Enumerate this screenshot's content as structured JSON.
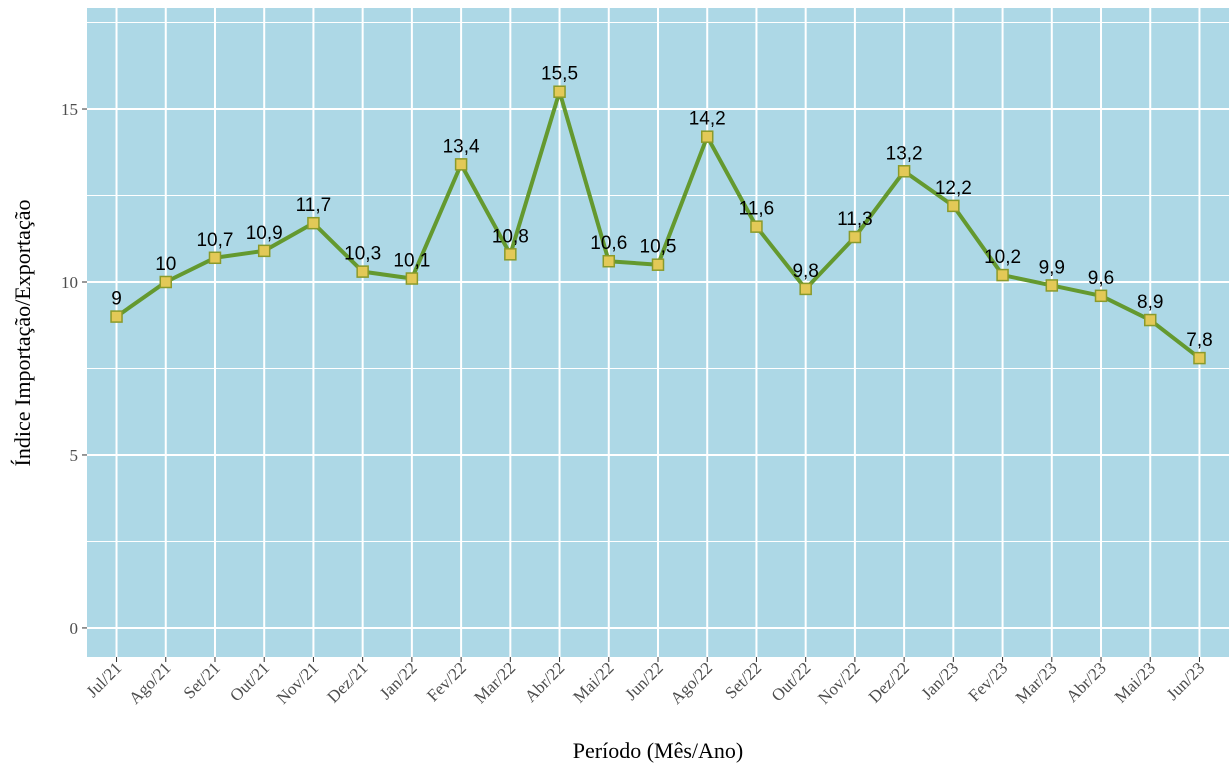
{
  "chart_data": {
    "type": "line",
    "x_label": "Período (Mês/Ano)",
    "y_label": "Índice Importação/Exportação",
    "categories": [
      "Jul/21",
      "Ago/21",
      "Set/21",
      "Out/21",
      "Nov/21",
      "Dez/21",
      "Jan/22",
      "Fev/22",
      "Mar/22",
      "Abr/22",
      "Mai/22",
      "Jun/22",
      "Ago/22",
      "Set/22",
      "Out/22",
      "Nov/22",
      "Dez/22",
      "Jan/23",
      "Fev/23",
      "Mar/23",
      "Abr/23",
      "Mai/23",
      "Jun/23"
    ],
    "values": [
      9,
      10,
      10.7,
      10.9,
      11.7,
      10.3,
      10.1,
      13.4,
      10.8,
      15.5,
      10.6,
      10.5,
      14.2,
      11.6,
      9.8,
      11.3,
      13.2,
      12.2,
      10.2,
      9.9,
      9.6,
      8.9,
      7.8
    ],
    "value_labels": [
      "9",
      "10",
      "10,7",
      "10,9",
      "11,7",
      "10,3",
      "10,1",
      "13,4",
      "10,8",
      "15,5",
      "10,6",
      "10,5",
      "14,2",
      "11,6",
      "9,8",
      "11,3",
      "13,2",
      "12,2",
      "10,2",
      "9,9",
      "9,6",
      "8,9",
      "7,8"
    ],
    "color": "#64992f",
    "marker_color": "#e3c957",
    "ylim": [
      -0.84,
      17.92
    ],
    "yticks": [
      0,
      5,
      10,
      15
    ],
    "grid": true,
    "background": "#add8e6"
  }
}
